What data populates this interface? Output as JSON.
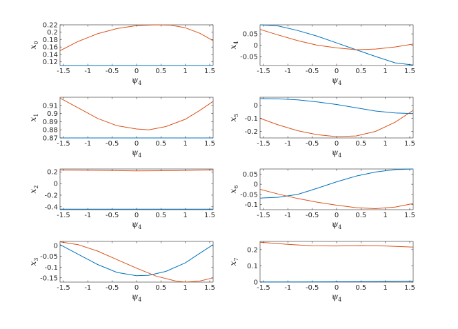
{
  "chart_data": [
    {
      "type": "line",
      "ylabel": "x",
      "ylabel_sub": "0",
      "xlabel": "ψ",
      "xlabel_sub": "4",
      "xlim": [
        -1.5708,
        1.5708
      ],
      "ylim": [
        0.11,
        0.22
      ],
      "xticks": [
        -1.5,
        -1,
        -0.5,
        0,
        0.5,
        1,
        1.5
      ],
      "xtick_labels": [
        "-1.5",
        "-1",
        "-0.5",
        "0",
        "0.5",
        "1",
        "1.5"
      ],
      "yticks": [
        0.12,
        0.14,
        0.16,
        0.18,
        0.2,
        0.22
      ],
      "ytick_labels": [
        "0.12",
        "0.14",
        "0.16",
        "0.18",
        "0.2",
        "0.22"
      ],
      "series": [
        {
          "color": "#0072BD",
          "x": [
            -1.5708,
            1.5708
          ],
          "y": [
            0.11,
            0.11
          ]
        },
        {
          "color": "#D95319",
          "x": [
            -1.5708,
            -1.2,
            -0.8,
            -0.4,
            0,
            0.4,
            0.7,
            1.0,
            1.3,
            1.5708
          ],
          "y": [
            0.15,
            0.175,
            0.196,
            0.21,
            0.218,
            0.22,
            0.219,
            0.212,
            0.197,
            0.177
          ]
        }
      ]
    },
    {
      "type": "line",
      "ylabel": "x",
      "ylabel_sub": "4",
      "xlabel": "ψ",
      "xlabel_sub": "4",
      "xlim": [
        -1.5708,
        1.5708
      ],
      "ylim": [
        -0.09,
        0.09
      ],
      "xticks": [
        -1.5,
        -1,
        -0.5,
        0,
        0.5,
        1,
        1.5
      ],
      "xtick_labels": [
        "-1.5",
        "-1",
        "-0.5",
        "0",
        "0.5",
        "1",
        "1.5"
      ],
      "yticks": [
        -0.05,
        0,
        0.05
      ],
      "ytick_labels": [
        "-0.05",
        "0",
        "0.05"
      ],
      "series": [
        {
          "color": "#0072BD",
          "x": [
            -1.5708,
            -1.2,
            -0.8,
            -0.4,
            0,
            0.4,
            0.8,
            1.2,
            1.5708
          ],
          "y": [
            0.09,
            0.085,
            0.065,
            0.04,
            0.01,
            -0.02,
            -0.05,
            -0.078,
            -0.088
          ]
        },
        {
          "color": "#D95319",
          "x": [
            -1.5708,
            -1.2,
            -0.8,
            -0.4,
            0,
            0.4,
            0.8,
            1.2,
            1.5708
          ],
          "y": [
            0.07,
            0.045,
            0.02,
            0.0,
            -0.012,
            -0.02,
            -0.017,
            -0.008,
            0.005
          ]
        }
      ]
    },
    {
      "type": "line",
      "ylabel": "x",
      "ylabel_sub": "1",
      "xlabel": "ψ",
      "xlabel_sub": "4",
      "xlim": [
        -1.5708,
        1.5708
      ],
      "ylim": [
        0.87,
        0.92
      ],
      "xticks": [
        -1.5,
        -1,
        -0.5,
        0,
        0.5,
        1,
        1.5
      ],
      "xtick_labels": [
        "-1.5",
        "-1",
        "-0.5",
        "0",
        "0.5",
        "1",
        "1.5"
      ],
      "yticks": [
        0.87,
        0.88,
        0.89,
        0.9,
        0.91
      ],
      "ytick_labels": [
        "0.87",
        "0.88",
        "0.89",
        "0.9",
        "0.91"
      ],
      "series": [
        {
          "color": "#0072BD",
          "x": [
            -1.5708,
            1.5708
          ],
          "y": [
            0.87,
            0.87
          ]
        },
        {
          "color": "#D95319",
          "x": [
            -1.5708,
            -1.2,
            -0.8,
            -0.4,
            0,
            0.25,
            0.6,
            1.0,
            1.3,
            1.5708
          ],
          "y": [
            0.919,
            0.907,
            0.894,
            0.885,
            0.881,
            0.88,
            0.884,
            0.893,
            0.904,
            0.915
          ]
        }
      ]
    },
    {
      "type": "line",
      "ylabel": "x",
      "ylabel_sub": "5",
      "xlabel": "ψ",
      "xlabel_sub": "4",
      "xlim": [
        -1.5708,
        1.5708
      ],
      "ylim": [
        -0.25,
        0.06
      ],
      "xticks": [
        -1.5,
        -1,
        -0.5,
        0,
        0.5,
        1,
        1.5
      ],
      "xtick_labels": [
        "-1.5",
        "-1",
        "-0.5",
        "0",
        "0.5",
        "1",
        "1.5"
      ],
      "yticks": [
        -0.2,
        -0.1,
        0
      ],
      "ytick_labels": [
        "-0.2",
        "-0.1",
        "0"
      ],
      "series": [
        {
          "color": "#0072BD",
          "x": [
            -1.5708,
            -1.2,
            -0.8,
            -0.4,
            0,
            0.4,
            0.8,
            1.2,
            1.5708
          ],
          "y": [
            0.05,
            0.048,
            0.04,
            0.025,
            0.005,
            -0.02,
            -0.045,
            -0.06,
            -0.065
          ]
        },
        {
          "color": "#D95319",
          "x": [
            -1.5708,
            -1.2,
            -0.8,
            -0.4,
            0,
            0.4,
            0.8,
            1.2,
            1.5708
          ],
          "y": [
            -0.1,
            -0.15,
            -0.195,
            -0.225,
            -0.24,
            -0.235,
            -0.2,
            -0.13,
            -0.04
          ]
        }
      ]
    },
    {
      "type": "line",
      "ylabel": "x",
      "ylabel_sub": "2",
      "xlabel": "ψ",
      "xlabel_sub": "4",
      "xlim": [
        -1.5708,
        1.5708
      ],
      "ylim": [
        -0.45,
        0.25
      ],
      "xticks": [
        -1.5,
        -1,
        -0.5,
        0,
        0.5,
        1,
        1.5
      ],
      "xtick_labels": [
        "-1.5",
        "-1",
        "-0.5",
        "0",
        "0.5",
        "1",
        "1.5"
      ],
      "yticks": [
        -0.4,
        -0.2,
        0,
        0.2
      ],
      "ytick_labels": [
        "-0.4",
        "-0.2",
        "0",
        "0.2"
      ],
      "series": [
        {
          "color": "#0072BD",
          "x": [
            -1.5708,
            1.5708
          ],
          "y": [
            -0.44,
            -0.44
          ]
        },
        {
          "color": "#D95319",
          "x": [
            -1.5708,
            -0.8,
            0,
            0.8,
            1.5708
          ],
          "y": [
            0.232,
            0.226,
            0.218,
            0.222,
            0.234
          ]
        }
      ]
    },
    {
      "type": "line",
      "ylabel": "x",
      "ylabel_sub": "6",
      "xlabel": "ψ",
      "xlabel_sub": "4",
      "xlim": [
        -1.5708,
        1.5708
      ],
      "ylim": [
        -0.125,
        0.075
      ],
      "xticks": [
        -1.5,
        -1,
        -0.5,
        0,
        0.5,
        1,
        1.5
      ],
      "xtick_labels": [
        "-1.5",
        "-1",
        "-0.5",
        "0",
        "0.5",
        "1",
        "1.5"
      ],
      "yticks": [
        -0.1,
        -0.05,
        0,
        0.05
      ],
      "ytick_labels": [
        "-0.1",
        "-0.05",
        "0",
        "0.05"
      ],
      "series": [
        {
          "color": "#0072BD",
          "x": [
            -1.5708,
            -1.2,
            -0.8,
            -0.4,
            0,
            0.4,
            0.8,
            1.2,
            1.5708
          ],
          "y": [
            -0.068,
            -0.064,
            -0.05,
            -0.02,
            0.012,
            0.04,
            0.06,
            0.072,
            0.075
          ]
        },
        {
          "color": "#D95319",
          "x": [
            -1.5708,
            -1.2,
            -0.8,
            -0.4,
            0,
            0.4,
            0.8,
            1.2,
            1.5708
          ],
          "y": [
            -0.025,
            -0.048,
            -0.07,
            -0.088,
            -0.103,
            -0.115,
            -0.12,
            -0.112,
            -0.095
          ]
        }
      ]
    },
    {
      "type": "line",
      "ylabel": "x",
      "ylabel_sub": "3",
      "xlabel": "ψ",
      "xlabel_sub": "4",
      "xlim": [
        -1.5708,
        1.5708
      ],
      "ylim": [
        -0.17,
        0.02
      ],
      "xticks": [
        -1.5,
        -1,
        -0.5,
        0,
        0.5,
        1,
        1.5
      ],
      "xtick_labels": [
        "-1.5",
        "-1",
        "-0.5",
        "0",
        "0.5",
        "1",
        "1.5"
      ],
      "yticks": [
        -0.15,
        -0.1,
        -0.05,
        0
      ],
      "ytick_labels": [
        "-0.15",
        "-0.1",
        "-0.05",
        "0"
      ],
      "series": [
        {
          "color": "#0072BD",
          "x": [
            -1.5708,
            -1.2,
            -0.8,
            -0.4,
            0,
            0.25,
            0.6,
            1.0,
            1.3,
            1.5708
          ],
          "y": [
            0.005,
            -0.04,
            -0.088,
            -0.125,
            -0.14,
            -0.138,
            -0.12,
            -0.08,
            -0.035,
            0.005
          ]
        },
        {
          "color": "#D95319",
          "x": [
            -1.5708,
            -1.2,
            -0.8,
            -0.4,
            0,
            0.4,
            0.8,
            1.0,
            1.3,
            1.5708
          ],
          "y": [
            0.018,
            0.005,
            -0.025,
            -0.065,
            -0.105,
            -0.142,
            -0.165,
            -0.17,
            -0.165,
            -0.15
          ]
        }
      ]
    },
    {
      "type": "line",
      "ylabel": "x",
      "ylabel_sub": "7",
      "xlabel": "ψ",
      "xlabel_sub": "4",
      "xlim": [
        -1.5708,
        1.5708
      ],
      "ylim": [
        0,
        0.25
      ],
      "xticks": [
        -1.5,
        -1,
        -0.5,
        0,
        0.5,
        1,
        1.5
      ],
      "xtick_labels": [
        "-1.5",
        "-1",
        "-0.5",
        "0",
        "0.5",
        "1",
        "1.5"
      ],
      "yticks": [
        0,
        0.1,
        0.2
      ],
      "ytick_labels": [
        "0",
        "0.1",
        "0.2"
      ],
      "series": [
        {
          "color": "#0072BD",
          "x": [
            -1.5708,
            -0.8,
            0,
            0.8,
            1.5708
          ],
          "y": [
            0.001,
            0.001,
            0.002,
            0.004,
            0.005
          ]
        },
        {
          "color": "#D95319",
          "x": [
            -1.5708,
            -1.0,
            -0.5,
            0,
            0.5,
            1.0,
            1.5708
          ],
          "y": [
            0.245,
            0.232,
            0.223,
            0.222,
            0.224,
            0.222,
            0.215
          ]
        }
      ]
    }
  ]
}
